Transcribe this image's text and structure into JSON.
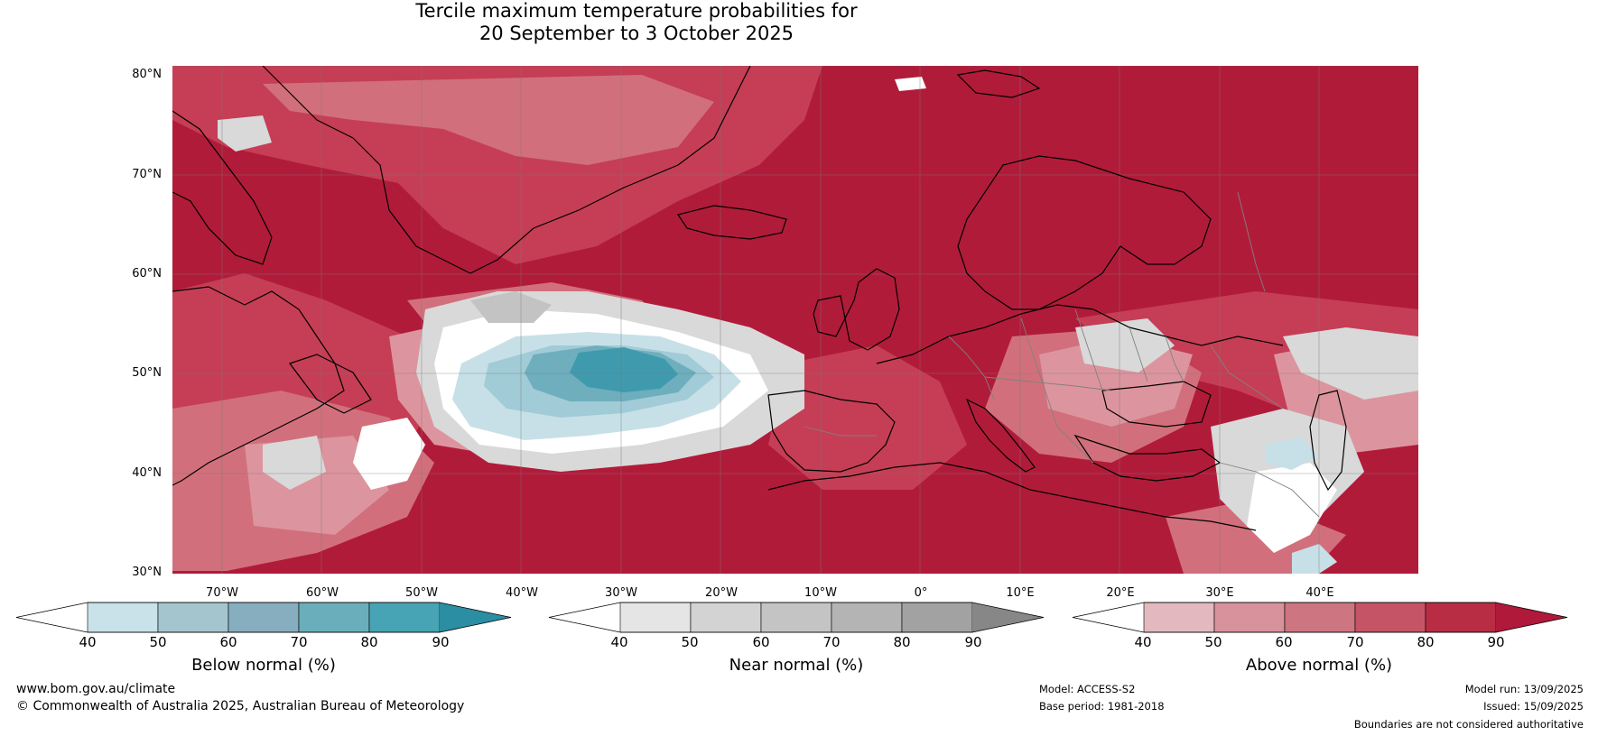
{
  "title": {
    "line1": "Tercile maximum temperature probabilities for",
    "line2": "20 September to 3 October 2025"
  },
  "map": {
    "lat_labels": [
      "80°N",
      "70°N",
      "60°N",
      "50°N",
      "40°N",
      "30°N"
    ],
    "lon_labels": [
      "70°W",
      "60°W",
      "50°W",
      "40°W",
      "30°W",
      "20°W",
      "10°W",
      "0°",
      "10°E",
      "20°E",
      "30°E",
      "40°E"
    ],
    "colors": {
      "above_90": "#b11b3a",
      "above_80": "#c53e55",
      "above_70": "#d1707c",
      "above_60": "#dc959e",
      "above_50": "#e8bcc1",
      "near_50": "#d9d9d9",
      "near_60": "#c3c3c3",
      "below_50": "#c7e0e8",
      "below_60": "#a1cbd6",
      "below_70": "#6eaebd",
      "below_80": "#3f9aae",
      "white": "#ffffff",
      "grid": "#7a7a7a",
      "coast": "#000000",
      "border": "#808080"
    }
  },
  "colorbars": [
    {
      "label": "Below normal (%)",
      "ticks": [
        "40",
        "50",
        "60",
        "70",
        "80",
        "90"
      ],
      "colors": [
        "#c9e1e8",
        "#a4c5cd",
        "#86aebf",
        "#6aaebb",
        "#47a4b4",
        "#2b8ea3"
      ]
    },
    {
      "label": "Near normal (%)",
      "ticks": [
        "40",
        "50",
        "60",
        "70",
        "80",
        "90"
      ],
      "colors": [
        "#e5e5e5",
        "#d3d3d3",
        "#c4c4c4",
        "#b4b4b4",
        "#a2a2a2",
        "#878787"
      ]
    },
    {
      "label": "Above normal (%)",
      "ticks": [
        "40",
        "50",
        "60",
        "70",
        "80",
        "90"
      ],
      "colors": [
        "#e3b8bf",
        "#d7929b",
        "#cd7580",
        "#c55566",
        "#b82c44",
        "#b0193a"
      ]
    }
  ],
  "footer": {
    "website": "www.bom.gov.au/climate",
    "copyright": "© Commonwealth of Australia 2025, Australian Bureau of Meteorology",
    "model": "Model: ACCESS-S2",
    "base_period": "Base period: 1981-2018",
    "model_run": "Model run: 13/09/2025",
    "issued": "Issued: 15/09/2025",
    "disclaimer": "Boundaries are not considered authoritative"
  }
}
